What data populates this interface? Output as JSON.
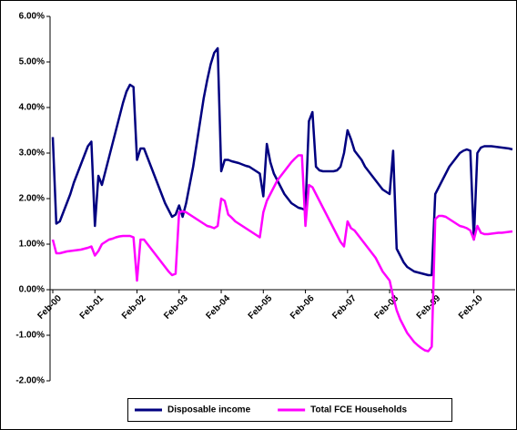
{
  "chart_data": {
    "type": "line",
    "categories": [
      "Feb-00",
      null,
      null,
      null,
      null,
      null,
      null,
      null,
      null,
      null,
      null,
      null,
      "Feb-01",
      null,
      null,
      null,
      null,
      null,
      null,
      null,
      null,
      null,
      null,
      null,
      "Feb-02",
      null,
      null,
      null,
      null,
      null,
      null,
      null,
      null,
      null,
      null,
      null,
      "Feb-03",
      null,
      null,
      null,
      null,
      null,
      null,
      null,
      null,
      null,
      null,
      null,
      "Feb-04",
      null,
      null,
      null,
      null,
      null,
      null,
      null,
      null,
      null,
      null,
      null,
      "Feb-05",
      null,
      null,
      null,
      null,
      null,
      null,
      null,
      null,
      null,
      null,
      null,
      "Feb-06",
      null,
      null,
      null,
      null,
      null,
      null,
      null,
      null,
      null,
      null,
      null,
      "Feb-07",
      null,
      null,
      null,
      null,
      null,
      null,
      null,
      null,
      null,
      null,
      null,
      "Feb-08",
      null,
      null,
      null,
      null,
      null,
      null,
      null,
      null,
      null,
      null,
      null,
      "Feb-09",
      null,
      null,
      null,
      null,
      null,
      null,
      null,
      null,
      null,
      null,
      null,
      "Feb-10",
      null,
      null,
      null,
      null,
      null,
      null,
      null,
      null,
      null,
      null,
      null
    ],
    "series": [
      {
        "name": "Disposable income",
        "color": "#000080",
        "values": [
          3.35,
          1.45,
          1.5,
          1.7,
          1.9,
          2.1,
          2.35,
          2.55,
          2.75,
          2.95,
          3.15,
          3.25,
          1.4,
          2.5,
          2.3,
          2.6,
          2.9,
          3.2,
          3.5,
          3.8,
          4.1,
          4.35,
          4.5,
          4.45,
          2.85,
          3.1,
          3.1,
          2.9,
          2.7,
          2.5,
          2.3,
          2.1,
          1.9,
          1.75,
          1.6,
          1.65,
          1.85,
          1.6,
          1.9,
          2.3,
          2.7,
          3.2,
          3.7,
          4.2,
          4.6,
          4.95,
          5.2,
          5.3,
          2.6,
          2.85,
          2.85,
          2.82,
          2.8,
          2.78,
          2.75,
          2.72,
          2.7,
          2.65,
          2.6,
          2.55,
          2.05,
          3.2,
          2.8,
          2.55,
          2.4,
          2.25,
          2.1,
          2.0,
          1.9,
          1.85,
          1.8,
          1.78,
          1.75,
          3.7,
          3.9,
          2.7,
          2.62,
          2.6,
          2.6,
          2.6,
          2.6,
          2.62,
          2.7,
          3.0,
          3.5,
          3.3,
          3.05,
          2.95,
          2.85,
          2.7,
          2.6,
          2.5,
          2.4,
          2.3,
          2.2,
          2.15,
          2.1,
          3.05,
          0.9,
          0.75,
          0.6,
          0.5,
          0.45,
          0.4,
          0.38,
          0.36,
          0.34,
          0.32,
          0.32,
          2.1,
          2.25,
          2.4,
          2.55,
          2.7,
          2.8,
          2.9,
          3.0,
          3.05,
          3.08,
          3.05,
          1.1,
          3.0,
          3.12,
          3.15,
          3.15,
          3.15,
          3.14,
          3.13,
          3.12,
          3.11,
          3.1,
          3.08
        ]
      },
      {
        "name": "Total FCE Households",
        "color": "#ff00ff",
        "values": [
          1.1,
          0.8,
          0.8,
          0.82,
          0.84,
          0.85,
          0.86,
          0.87,
          0.88,
          0.9,
          0.92,
          0.95,
          0.75,
          0.85,
          1.0,
          1.05,
          1.1,
          1.12,
          1.15,
          1.17,
          1.18,
          1.18,
          1.18,
          1.15,
          0.2,
          1.1,
          1.1,
          1.0,
          0.9,
          0.8,
          0.7,
          0.6,
          0.5,
          0.4,
          0.32,
          0.35,
          1.7,
          1.72,
          1.7,
          1.65,
          1.6,
          1.55,
          1.5,
          1.45,
          1.4,
          1.38,
          1.35,
          1.4,
          2.0,
          1.95,
          1.65,
          1.58,
          1.5,
          1.45,
          1.4,
          1.35,
          1.3,
          1.25,
          1.2,
          1.15,
          1.7,
          1.95,
          2.1,
          2.25,
          2.4,
          2.5,
          2.6,
          2.7,
          2.8,
          2.88,
          2.95,
          2.95,
          1.4,
          2.3,
          2.25,
          2.1,
          1.95,
          1.8,
          1.65,
          1.5,
          1.35,
          1.2,
          1.05,
          0.95,
          1.5,
          1.35,
          1.3,
          1.2,
          1.1,
          1.0,
          0.9,
          0.8,
          0.7,
          0.55,
          0.4,
          0.3,
          0.2,
          -0.15,
          -0.45,
          -0.65,
          -0.8,
          -0.95,
          -1.05,
          -1.15,
          -1.22,
          -1.28,
          -1.33,
          -1.35,
          -1.25,
          1.55,
          1.62,
          1.62,
          1.6,
          1.55,
          1.5,
          1.45,
          1.4,
          1.38,
          1.35,
          1.3,
          1.1,
          1.4,
          1.25,
          1.22,
          1.22,
          1.23,
          1.24,
          1.25,
          1.25,
          1.26,
          1.27,
          1.28
        ]
      }
    ],
    "ylim": [
      -2,
      6
    ],
    "yticks": [
      {
        "value": -2,
        "label": "-2.00%"
      },
      {
        "value": -1,
        "label": "-1.00%"
      },
      {
        "value": 0,
        "label": "0.00%"
      },
      {
        "value": 1,
        "label": "1.00%"
      },
      {
        "value": 2,
        "label": "2.00%"
      },
      {
        "value": 3,
        "label": "3.00%"
      },
      {
        "value": 4,
        "label": "4.00%"
      },
      {
        "value": 5,
        "label": "5.00%"
      },
      {
        "value": 6,
        "label": "6.00%"
      }
    ],
    "grid": false,
    "legend": "bottom"
  }
}
